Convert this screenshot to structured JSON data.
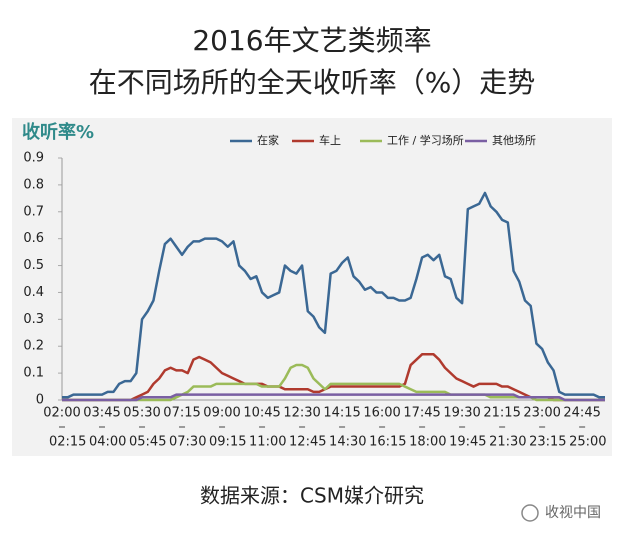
{
  "chart_data": {
    "type": "line",
    "title": "2016年文艺类频率",
    "subtitle": "在不同场所的全天收听率（%）走势",
    "y_label": "收听率%",
    "source": "数据来源：CSM媒介研究",
    "watermark": "收视中国",
    "categories": [
      "02:00",
      "02:15",
      null,
      null,
      null,
      null,
      null,
      "03:45",
      "04:00",
      null,
      null,
      null,
      null,
      null,
      "05:30",
      "05:45",
      null,
      null,
      null,
      null,
      null,
      "07:15",
      "07:30",
      null,
      null,
      null,
      null,
      null,
      "09:00",
      "09:15",
      null,
      null,
      null,
      null,
      null,
      "10:45",
      "11:00",
      null,
      null,
      null,
      null,
      null,
      "12:30",
      "12:45",
      null,
      null,
      null,
      null,
      null,
      "14:15",
      "14:30",
      null,
      null,
      null,
      null,
      null,
      "16:00",
      "16:15",
      null,
      null,
      null,
      null,
      null,
      "17:45",
      "18:00",
      null,
      null,
      null,
      null,
      null,
      "19:30",
      "19:45",
      null,
      null,
      null,
      null,
      null,
      "21:15",
      "21:30",
      null,
      null,
      null,
      null,
      null,
      "23:00",
      "23:15",
      null,
      null,
      null,
      null,
      null,
      "24:45",
      "25:00",
      null,
      null,
      null
    ],
    "series": [
      {
        "name": "在家",
        "color": "#3b6894",
        "values": [
          0.01,
          0.01,
          0.02,
          0.02,
          0.02,
          0.02,
          0.02,
          0.02,
          0.03,
          0.03,
          0.06,
          0.07,
          0.07,
          0.1,
          0.3,
          0.33,
          0.37,
          0.48,
          0.58,
          0.6,
          0.57,
          0.54,
          0.57,
          0.59,
          0.59,
          0.6,
          0.6,
          0.6,
          0.59,
          0.57,
          0.59,
          0.5,
          0.48,
          0.45,
          0.46,
          0.4,
          0.38,
          0.39,
          0.4,
          0.5,
          0.48,
          0.47,
          0.5,
          0.33,
          0.31,
          0.27,
          0.25,
          0.47,
          0.48,
          0.51,
          0.53,
          0.46,
          0.44,
          0.41,
          0.42,
          0.4,
          0.4,
          0.38,
          0.38,
          0.37,
          0.37,
          0.38,
          0.45,
          0.53,
          0.54,
          0.52,
          0.54,
          0.46,
          0.45,
          0.38,
          0.36,
          0.71,
          0.72,
          0.73,
          0.77,
          0.72,
          0.7,
          0.67,
          0.66,
          0.48,
          0.44,
          0.37,
          0.35,
          0.21,
          0.19,
          0.14,
          0.11,
          0.03,
          0.02,
          0.02,
          0.02,
          0.02,
          0.02,
          0.02,
          0.01,
          0.01
        ]
      },
      {
        "name": "车上",
        "color": "#b03a2e",
        "values": [
          0,
          0,
          0,
          0,
          0,
          0,
          0,
          0,
          0,
          0,
          0,
          0,
          0,
          0.01,
          0.02,
          0.03,
          0.06,
          0.08,
          0.11,
          0.12,
          0.11,
          0.11,
          0.1,
          0.15,
          0.16,
          0.15,
          0.14,
          0.12,
          0.1,
          0.09,
          0.08,
          0.07,
          0.06,
          0.06,
          0.06,
          0.06,
          0.05,
          0.05,
          0.05,
          0.04,
          0.04,
          0.04,
          0.04,
          0.04,
          0.03,
          0.03,
          0.04,
          0.05,
          0.05,
          0.05,
          0.05,
          0.05,
          0.05,
          0.05,
          0.05,
          0.05,
          0.05,
          0.05,
          0.05,
          0.05,
          0.06,
          0.13,
          0.15,
          0.17,
          0.17,
          0.17,
          0.15,
          0.12,
          0.1,
          0.08,
          0.07,
          0.06,
          0.05,
          0.06,
          0.06,
          0.06,
          0.06,
          0.05,
          0.05,
          0.04,
          0.03,
          0.02,
          0.01,
          0.01,
          0.01,
          0.01,
          0,
          0,
          0,
          0,
          0,
          0,
          0,
          0,
          0,
          0
        ]
      },
      {
        "name": "工作 / 学习场所",
        "color": "#9bbb59",
        "values": [
          0,
          0,
          0,
          0,
          0,
          0,
          0,
          0,
          0,
          0,
          0,
          0,
          0,
          0,
          0,
          0,
          0,
          0,
          0,
          0,
          0.01,
          0.02,
          0.03,
          0.05,
          0.05,
          0.05,
          0.05,
          0.06,
          0.06,
          0.06,
          0.06,
          0.06,
          0.06,
          0.06,
          0.06,
          0.05,
          0.05,
          0.05,
          0.05,
          0.08,
          0.12,
          0.13,
          0.13,
          0.12,
          0.08,
          0.06,
          0.04,
          0.06,
          0.06,
          0.06,
          0.06,
          0.06,
          0.06,
          0.06,
          0.06,
          0.06,
          0.06,
          0.06,
          0.06,
          0.06,
          0.05,
          0.04,
          0.03,
          0.03,
          0.03,
          0.03,
          0.03,
          0.03,
          0.02,
          0.02,
          0.02,
          0.02,
          0.02,
          0.02,
          0.02,
          0.01,
          0.01,
          0.01,
          0.01,
          0.01,
          0.01,
          0.01,
          0.01,
          0,
          0,
          0,
          0,
          0,
          0,
          0,
          0,
          0,
          0,
          0,
          0,
          0
        ]
      },
      {
        "name": "其他场所",
        "color": "#7a5fa3",
        "values": [
          0,
          0,
          0,
          0,
          0,
          0,
          0,
          0,
          0,
          0,
          0,
          0,
          0,
          0,
          0.01,
          0.01,
          0.01,
          0.01,
          0.01,
          0.01,
          0.02,
          0.02,
          0.02,
          0.02,
          0.02,
          0.02,
          0.02,
          0.02,
          0.02,
          0.02,
          0.02,
          0.02,
          0.02,
          0.02,
          0.02,
          0.02,
          0.02,
          0.02,
          0.02,
          0.02,
          0.02,
          0.02,
          0.02,
          0.02,
          0.02,
          0.02,
          0.02,
          0.02,
          0.02,
          0.02,
          0.02,
          0.02,
          0.02,
          0.02,
          0.02,
          0.02,
          0.02,
          0.02,
          0.02,
          0.02,
          0.02,
          0.02,
          0.02,
          0.02,
          0.02,
          0.02,
          0.02,
          0.02,
          0.02,
          0.02,
          0.02,
          0.02,
          0.02,
          0.02,
          0.02,
          0.02,
          0.02,
          0.02,
          0.02,
          0.02,
          0.01,
          0.01,
          0.01,
          0.01,
          0.01,
          0.01,
          0.01,
          0.01,
          0,
          0,
          0,
          0,
          0,
          0,
          0,
          0
        ]
      }
    ],
    "ylim": [
      0,
      0.9
    ],
    "yticks": [
      0,
      0.1,
      0.2,
      0.3,
      0.4,
      0.5,
      0.6,
      0.7,
      0.8,
      0.9
    ],
    "grid": false,
    "legend": "top"
  }
}
